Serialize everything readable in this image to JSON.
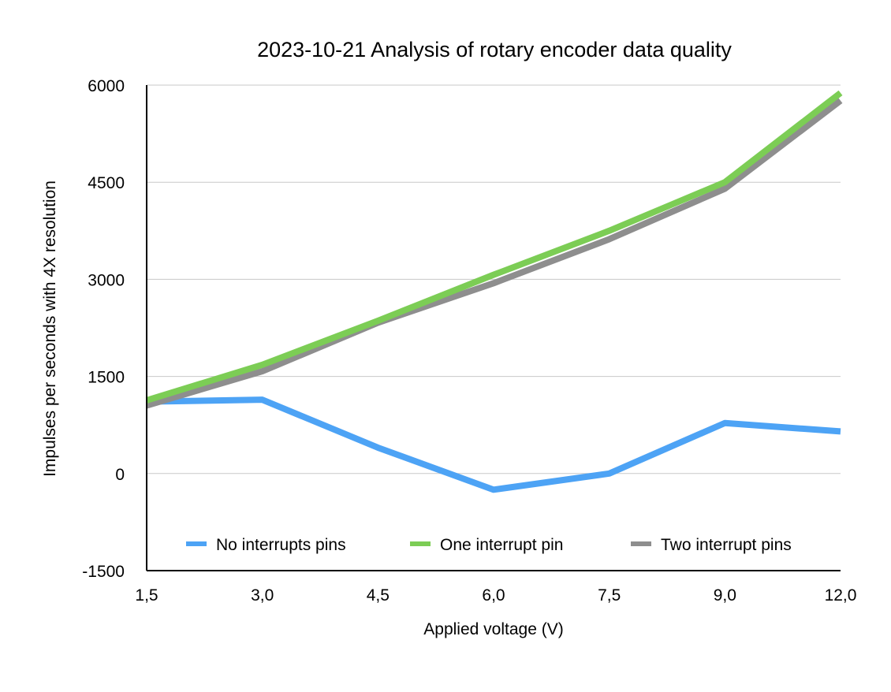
{
  "chart_data": {
    "type": "line",
    "title": "2023-10-21 Analysis of rotary encoder data quality",
    "xlabel": "Applied voltage (V)",
    "ylabel": "Impulses per seconds with 4X resolution",
    "categories": [
      "1,5",
      "3,0",
      "4,5",
      "6,0",
      "7,5",
      "9,0",
      "12,0"
    ],
    "y_ticks": [
      "-1500",
      "0",
      "1500",
      "3000",
      "4500",
      "6000"
    ],
    "ylim": [
      -1500,
      6000
    ],
    "grid": true,
    "legend_position": "bottom-inside",
    "series": [
      {
        "name": "No interrupts pins",
        "color": "#4da3f5",
        "values": [
          1110,
          1140,
          400,
          -250,
          0,
          780,
          650
        ]
      },
      {
        "name": "Two interrupt pins",
        "color": "#8e8e8e",
        "values": [
          1050,
          1580,
          2330,
          2940,
          3620,
          4400,
          5760
        ]
      },
      {
        "name": "One interrupt pin",
        "color": "#7ccd55",
        "values": [
          1130,
          1680,
          2360,
          3070,
          3750,
          4500,
          5880
        ]
      }
    ],
    "legend_order": [
      0,
      2,
      1
    ]
  }
}
